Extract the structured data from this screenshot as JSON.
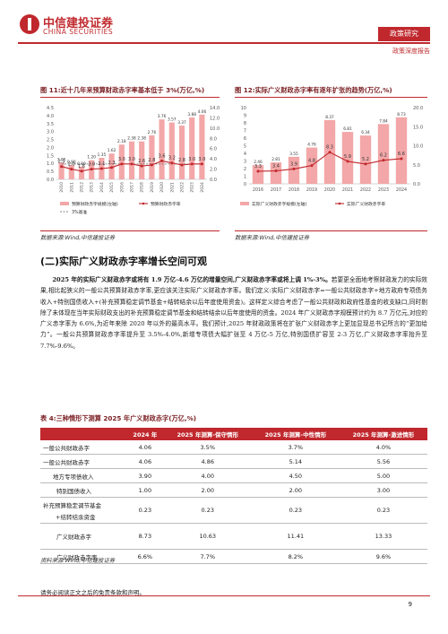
{
  "header": {
    "logo_cn": "中信建投证券",
    "logo_en": "CHINA SECURITIES",
    "tag": "政策研究",
    "subtitle": "政策深度报告"
  },
  "figure11": {
    "title": "图 11:近十几年来预算财政赤字率基本低于 3%(万亿,%)",
    "source": "数据来源:Wind,中信建投证券",
    "legend_bar": "预算财政赤字规模(左轴)",
    "legend_line": "预算财政赤字率",
    "legend_dash": "3%基准",
    "colors": {
      "bar": "#f3a7a8",
      "line": "#c0282d",
      "dash": "#666666"
    },
    "chart_data": {
      "type": "bar",
      "categories": [
        "2010",
        "2011",
        "2012",
        "2013",
        "2014",
        "2015",
        "2016",
        "2017",
        "2018",
        "2019",
        "2020",
        "2021",
        "2022",
        "2023",
        "2024"
      ],
      "series": [
        {
          "name": "预算财政赤字规模(左轴)",
          "type": "bar",
          "values": [
            1.05,
            0.9,
            0.8,
            1.2,
            1.35,
            1.62,
            2.18,
            2.38,
            2.38,
            2.76,
            3.76,
            3.57,
            3.37,
            3.88,
            4.06
          ]
        },
        {
          "name": "预算财政赤字率",
          "type": "line",
          "values": [
            2.5,
            2.0,
            1.6,
            2.0,
            2.1,
            2.3,
            3.0,
            3.0,
            2.6,
            2.8,
            3.6,
            3.2,
            2.8,
            3.0,
            3.0
          ]
        },
        {
          "name": "3%基准",
          "type": "line",
          "values": [
            3,
            3,
            3,
            3,
            3,
            3,
            3,
            3,
            3,
            3,
            3,
            3,
            3,
            3,
            3
          ]
        }
      ],
      "left_ticks": [
        "4.5",
        "4.0",
        "3.5",
        "3.0",
        "2.5",
        "2.0",
        "1.5",
        "1.0",
        "0.5",
        "0.0"
      ],
      "right_ticks": [
        "14.0",
        "12.0",
        "10.0",
        "8.0",
        "6.0",
        "4.0",
        "2.0",
        "0.0"
      ],
      "ylim_left": [
        0,
        4.5
      ],
      "ylim_right": [
        0,
        14
      ]
    }
  },
  "figure12": {
    "title": "图 12:实际广义财政赤字率有逐年扩张的趋势(万亿,%)",
    "source": "数据来源:Wind,中信建投证券",
    "legend_bar": "实际广义财政赤字规模(左轴)",
    "legend_line": "实际广义财政赤字率",
    "colors": {
      "bar": "#f3a7a8",
      "line": "#c0282d"
    },
    "chart_data": {
      "type": "bar",
      "categories": [
        "2016",
        "2017",
        "2018",
        "2019",
        "2020",
        "2021",
        "2022",
        "2023",
        "2024"
      ],
      "series": [
        {
          "name": "实际广义财政赤字规模(左轴)",
          "type": "bar",
          "values": [
            2.46,
            2.81,
            3.55,
            4.76,
            8.37,
            6.81,
            6.34,
            7.84,
            8.73
          ]
        },
        {
          "name": "实际广义财政赤字率",
          "type": "line",
          "values": [
            3.3,
            3.4,
            3.9,
            4.8,
            8.3,
            5.9,
            5.2,
            6.2,
            6.6
          ]
        }
      ],
      "left_ticks": [
        "10",
        "9",
        "8",
        "7",
        "6",
        "5",
        "4",
        "3",
        "2",
        "1",
        "0"
      ],
      "right_ticks": [
        "20.0",
        "15.0",
        "10.0",
        "5.0",
        "0.0"
      ],
      "ylim_left": [
        0,
        10
      ],
      "ylim_right": [
        0,
        20
      ]
    }
  },
  "section": {
    "title": "(二)实际广义财政赤字率增长空间可观",
    "lead_bold": "2025 年的实际广义财政赤字或将有 1.9 万亿-4.6 万亿的增量空间,广义财政赤字率或将上调 1%-3%。",
    "body": "若要更全面地考察财政发力的实际效果,相比起狭义的一般公共预算财政赤字率,更应该关注实际广义财政赤字率。我们定义:实际广义财政赤字=一般公共财政赤字+地方政府专项债务收入+特别国债收入+(补充预算稳定调节基金+结转结余以后年度使用资金)。这样定义综合考虑了一般公共财政和政府性基金的收支缺口,同时剔除了未体现在当年实际财政支出的补充预算稳定调节基金和结转结余以后年度使用的资金。2024 年广义财政赤字规模预计约为 8.7 万亿元,对应的广义赤字率为 6.6%,为近年来除 2020 年以外的最高水平。我们预计,2025 年财政政策将在扩张广义财政赤字上更加显现总书记所言的“更加给力”。一般公共预算财政赤字率提升至 3.5%-4.0%,新增专项债大幅扩张至 4 万亿-5 万亿,特别国债扩容至 2-3 万亿,广义财政赤字率抬升至 7.7%-9.6%。"
  },
  "table4": {
    "title": "表 4:三种情形下测算 2025 年广义财政赤字(万亿,%)",
    "headers": [
      "",
      "2024 年",
      "2025 年测算-保守情形",
      "2025 年测算-中性情形",
      "2025 年测算-激进情形"
    ],
    "rows": [
      {
        "label": "一般公共财政赤字",
        "values": [
          "4.06",
          "3.5%",
          "3.7%",
          "4.0%"
        ]
      },
      {
        "label": "一般公共财政赤字",
        "values": [
          "4.06",
          "4.86",
          "5.14",
          "5.56"
        ]
      },
      {
        "label": "地方专项债收入",
        "values": [
          "3.90",
          "4.00",
          "4.50",
          "5.00"
        ]
      },
      {
        "label": "特别国债收入",
        "values": [
          "1.00",
          "2.00",
          "2.00",
          "3.00"
        ]
      },
      {
        "label": "补充预算稳定调节基金",
        "label2": "+结转结余资金",
        "values": [
          "0.23",
          "0.23",
          "0.23",
          "0.23"
        ]
      },
      {
        "label": "广义财政赤字",
        "values": [
          "8.73",
          "10.63",
          "11.41",
          "13.33"
        ]
      },
      {
        "label": "广义财政赤字率",
        "values": [
          "6.6%",
          "7.7%",
          "8.2%",
          "9.6%"
        ]
      }
    ],
    "source": "资料来源:Wind,中信建投证券"
  },
  "footer": {
    "disclaimer": "请务必阅读正文之后的免责条款和声明。",
    "page": "9"
  }
}
